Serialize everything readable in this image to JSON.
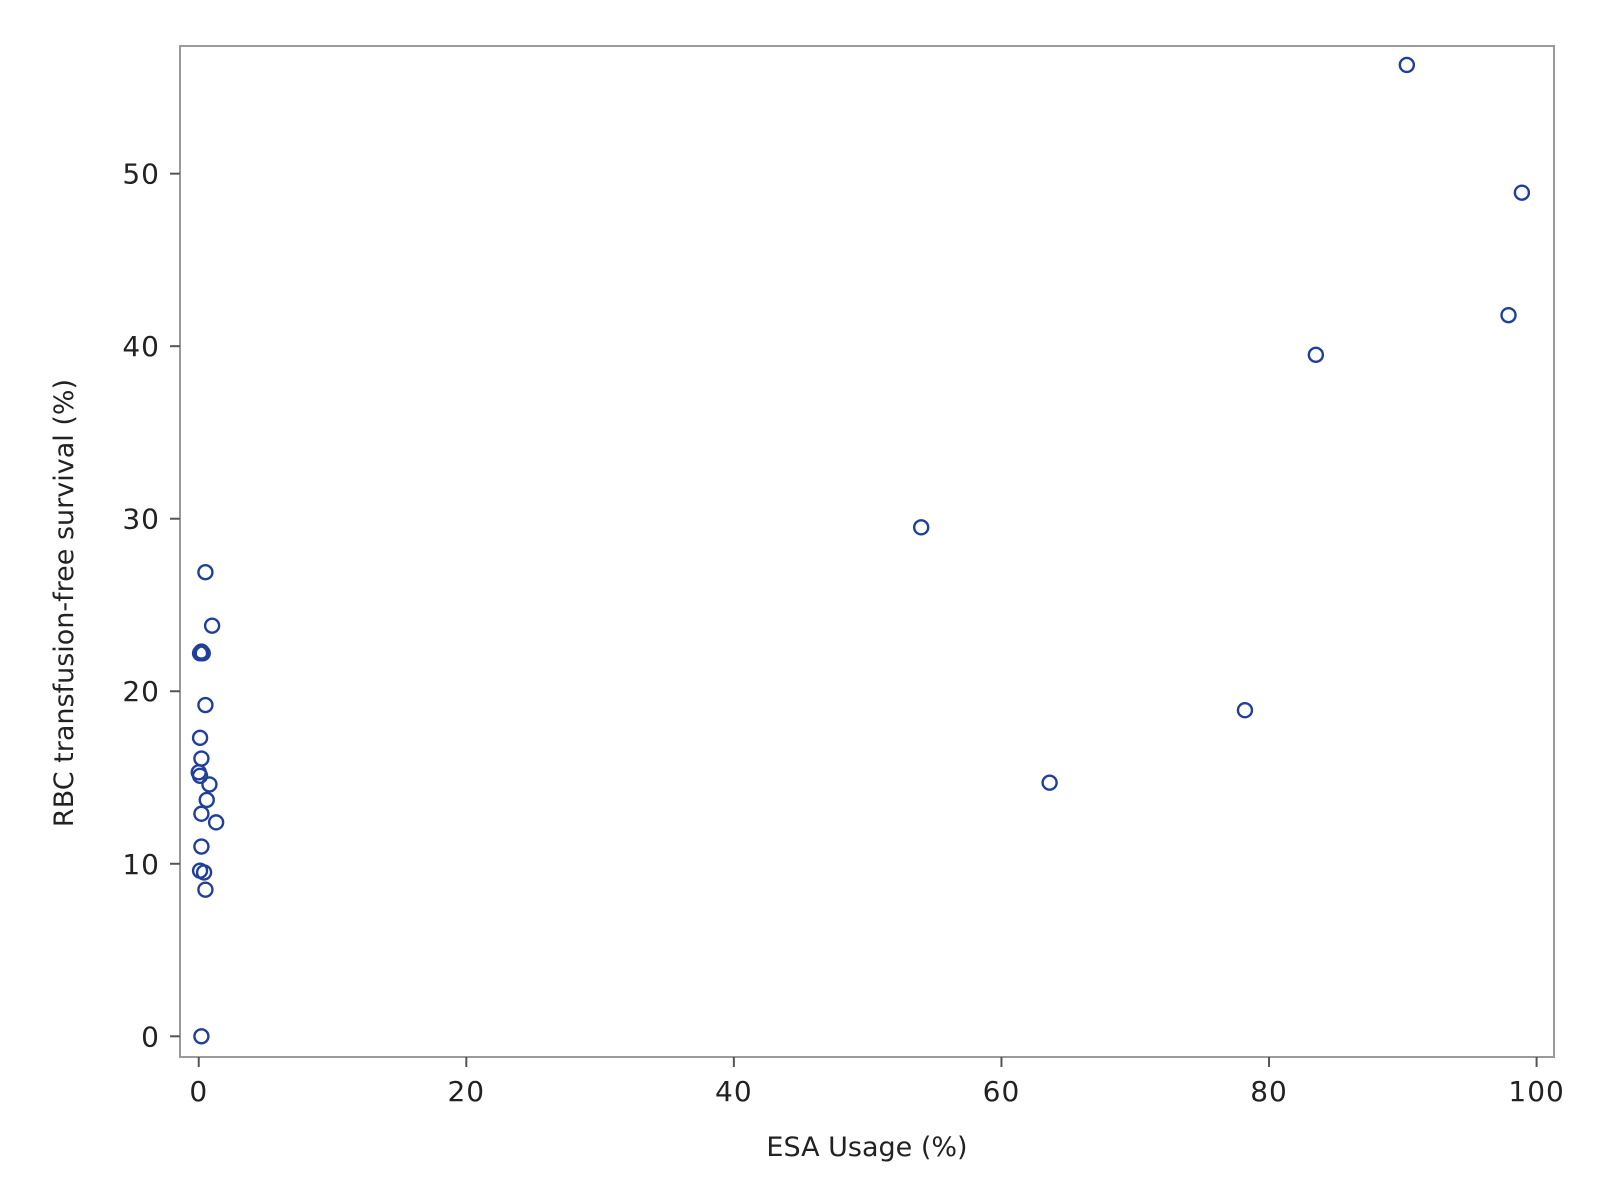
{
  "chart_data": {
    "type": "scatter",
    "xlabel": "ESA Usage (%)",
    "ylabel": "RBC transfusion-free survival (%)",
    "xlim": [
      -1.4,
      101.3
    ],
    "ylim": [
      -1.2,
      57.4
    ],
    "x_ticks": [
      0,
      20,
      40,
      60,
      80,
      100
    ],
    "y_ticks": [
      0,
      10,
      20,
      30,
      40,
      50
    ],
    "x_tick_labels": [
      "0",
      "20",
      "40",
      "60",
      "80",
      "100"
    ],
    "y_tick_labels": [
      "0",
      "10",
      "20",
      "30",
      "40",
      "50"
    ],
    "grid": false,
    "legend": "none",
    "marker": "open-circle",
    "marker_color": "#1f3f9a",
    "series": [
      {
        "x": [
          0.5,
          0.1,
          1.0,
          0.2,
          0.3,
          0.5,
          0.1,
          0.2,
          0.0,
          0.1,
          0.8,
          0.6,
          0.2,
          1.3,
          0.2,
          0.1,
          0.4,
          0.5,
          0.2,
          54.0,
          63.6,
          78.2,
          83.5,
          90.3,
          97.9,
          98.9
        ],
        "y": [
          26.9,
          22.2,
          23.8,
          22.3,
          22.2,
          19.2,
          17.3,
          16.1,
          15.3,
          15.1,
          14.6,
          13.7,
          12.9,
          12.4,
          11.0,
          9.6,
          9.5,
          8.5,
          0.0,
          29.5,
          14.7,
          18.9,
          39.5,
          56.3,
          41.8,
          48.9
        ]
      }
    ]
  }
}
